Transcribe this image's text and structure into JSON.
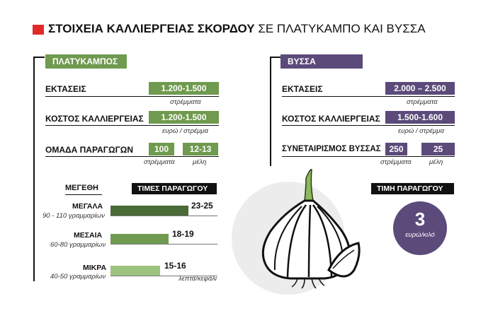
{
  "title": {
    "bold": "ΣΤΟΙΧΕΙΑ ΚΑΛΛΙΕΡΓΕΙΑΣ ΣΚΟΡΔΟΥ",
    "rest": "ΣΕ ΠΛΑΤΥΚΑΜΠΟ ΚΑΙ ΒΥΣΣΑ"
  },
  "colors": {
    "accent_red": "#e02a2a",
    "green": "#6f9a4f",
    "dark_green": "#2f4a26",
    "purple": "#5b4a7a"
  },
  "platykampos": {
    "tab": "ΠΛΑΤΥΚΑΜΠΟΣ",
    "rows": [
      {
        "label": "ΕΚΤΑΣΕΙΣ",
        "value": "1.200-1.500",
        "unit": "στρέμματα"
      },
      {
        "label": "ΚΟΣΤΟΣ ΚΑΛΛΙΕΡΓΕΙΑΣ",
        "value": "1.200-1.500",
        "unit": "ευρώ / στρέμμα"
      }
    ],
    "group": {
      "label": "ΟΜΑΔΑ ΠΑΡΑΓΩΓΩΝ",
      "value1": "100",
      "unit1": "στρέμματα",
      "value2": "12-13",
      "unit2": "μέλη"
    },
    "sizes_header": "ΜΕΓΕΘΗ",
    "prices_header": "ΤΙΜΕΣ ΠΑΡΑΓΩΓΟΥ",
    "bars": [
      {
        "label": "ΜΕΓΑΛΑ",
        "sub": "90 - 110 γραμμαρίων",
        "value": "23-25",
        "color": "#4a6a37"
      },
      {
        "label": "ΜΕΣΑΙΑ",
        "sub": "60-80 γραμμαρίων",
        "value": "18-19",
        "color": "#6f9a4f"
      },
      {
        "label": "ΜΙΚΡΑ",
        "sub": "40-50 γραμμαρίων",
        "value": "15-16",
        "color": "#9cc47e"
      }
    ],
    "bars_unit": "λεπτά/κεφάλι"
  },
  "vyssa": {
    "tab": "ΒΥΣΣΑ",
    "rows": [
      {
        "label": "ΕΚΤΑΣΕΙΣ",
        "value": "2.000 – 2.500",
        "unit": "στρέμματα"
      },
      {
        "label": "ΚΟΣΤΟΣ ΚΑΛΛΙΕΡΓΕΙΑΣ",
        "value": "1.500-1.600",
        "unit": "ευρώ / στρέμμα"
      }
    ],
    "group": {
      "label": "ΣΥΝΕΤΑΙΡΙΣΜΟΣ ΒΥΣΣΑΣ",
      "value1": "250",
      "unit1": "στρέμματα",
      "value2": "25",
      "unit2": "μέλη"
    },
    "price_header": "ΤΙΜΗ ΠΑΡΑΓΩΓΟΥ",
    "price_value": "3",
    "price_unit": "ευρώ/κιλό"
  }
}
